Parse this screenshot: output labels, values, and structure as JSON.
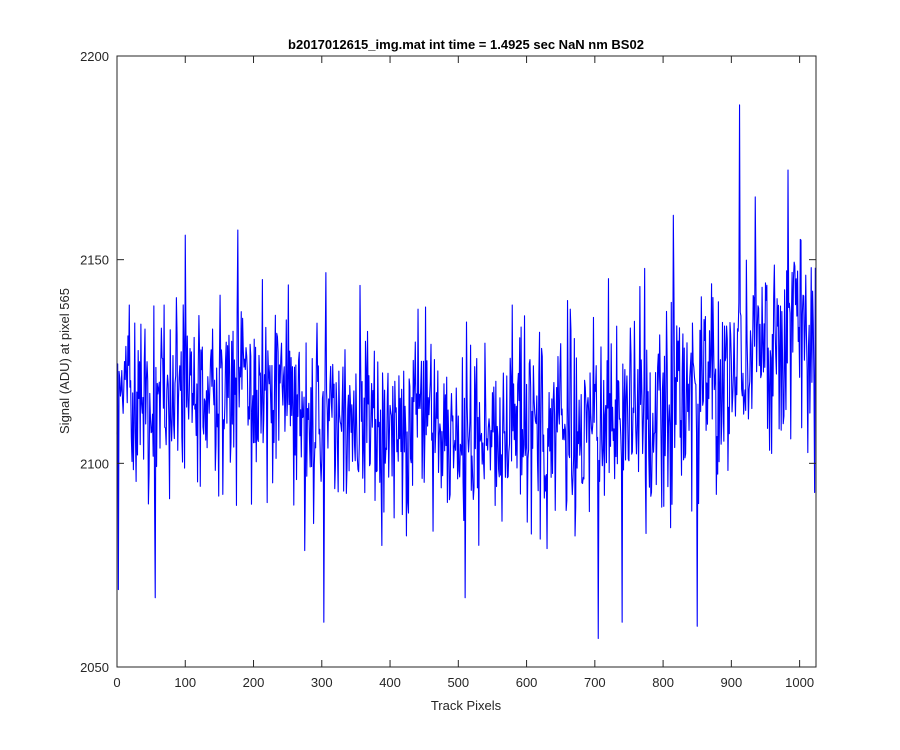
{
  "chart_data": {
    "type": "line",
    "title": "b2017012615_img.mat int time = 1.4925 sec  NaN nm BS02",
    "xlabel": "Track Pixels",
    "ylabel": "Signal (ADU) at pixel 565",
    "xlim": [
      0,
      1024
    ],
    "ylim": [
      2050,
      2200
    ],
    "xticks": [
      0,
      100,
      200,
      300,
      400,
      500,
      600,
      700,
      800,
      900,
      1000
    ],
    "yticks": [
      2050,
      2100,
      2150,
      2200
    ],
    "grid": false,
    "legend": "none",
    "line_color": "#0000ff",
    "series": [
      {
        "x": [
          0,
          25,
          50,
          75,
          100,
          125,
          150,
          175,
          200,
          225,
          250,
          275,
          300,
          325,
          350,
          375,
          400,
          425,
          450,
          475,
          500,
          525,
          550,
          575,
          600,
          625,
          650,
          675,
          700,
          725,
          750,
          775,
          800,
          825,
          850,
          875,
          900,
          925,
          950,
          975,
          1000,
          1023
        ],
        "values": [
          2114,
          2117,
          2116,
          2115,
          2121,
          2119,
          2118,
          2119,
          2117,
          2116,
          2114,
          2113,
          2112,
          2111,
          2111,
          2110,
          2110,
          2109,
          2109,
          2108,
          2108,
          2107,
          2107,
          2107,
          2108,
          2108,
          2109,
          2110,
          2110,
          2111,
          2111,
          2112,
          2114,
          2116,
          2118,
          2121,
          2124,
          2126,
          2128,
          2132,
          2130,
          2133
        ]
      }
    ],
    "annotations": [
      {
        "x": 2,
        "y": 2069
      },
      {
        "x": 56,
        "y": 2067
      },
      {
        "x": 100,
        "y": 2156
      },
      {
        "x": 303,
        "y": 2061
      },
      {
        "x": 510,
        "y": 2067
      },
      {
        "x": 705,
        "y": 2057
      },
      {
        "x": 740,
        "y": 2061
      },
      {
        "x": 850,
        "y": 2060
      },
      {
        "x": 912,
        "y": 2188
      },
      {
        "x": 983,
        "y": 2172
      }
    ]
  }
}
